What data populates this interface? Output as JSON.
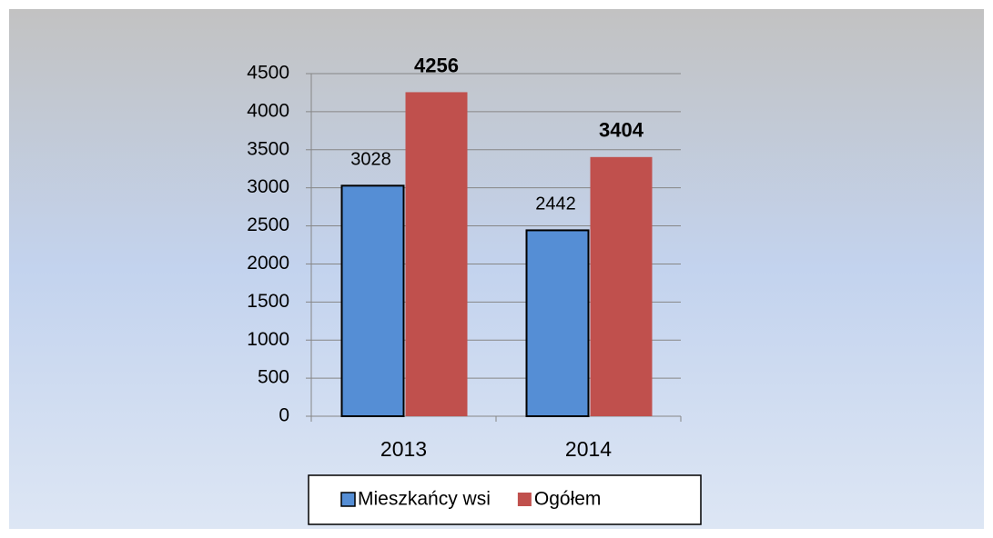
{
  "chart_data": {
    "type": "bar",
    "categories": [
      "2013",
      "2014"
    ],
    "series": [
      {
        "name": "Mieszkańcy wsi",
        "color": "#558ed5",
        "values": [
          3028,
          2442
        ]
      },
      {
        "name": "Ogółem",
        "color": "#c0504d",
        "values": [
          4256,
          3404
        ]
      }
    ],
    "ylim": [
      0,
      4500
    ],
    "yticks": [
      0,
      500,
      1000,
      1500,
      2000,
      2500,
      3000,
      3500,
      4000,
      4500
    ],
    "grid": true,
    "legend": "bottom"
  }
}
